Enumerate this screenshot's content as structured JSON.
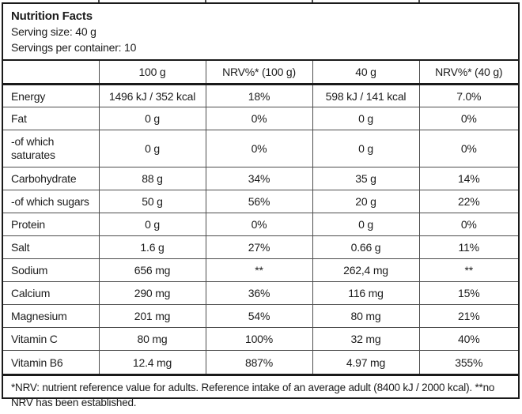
{
  "colors": {
    "background": "#ffffff",
    "text": "#1c1c1c",
    "border_thick": "#1a1a1a",
    "border_thin": "#4d4d4d"
  },
  "header": {
    "title": "Nutrition Facts",
    "serving_size": "Serving size: 40 g",
    "servings_per_container": "Servings per container: 10"
  },
  "table": {
    "columns": [
      "",
      "100 g",
      "NRV%* (100 g)",
      "40 g",
      "NRV%* (40 g)"
    ],
    "rows": [
      {
        "label": "Energy",
        "values": [
          "1496 kJ / 352 kcal",
          "18%",
          "598 kJ / 141 kcal",
          "7.0%"
        ]
      },
      {
        "label": "Fat",
        "values": [
          "0 g",
          "0%",
          "0 g",
          "0%"
        ]
      },
      {
        "label": "-of which saturates",
        "values": [
          "0 g",
          "0%",
          "0 g",
          "0%"
        ]
      },
      {
        "label": "Carbohydrate",
        "values": [
          "88 g",
          "34%",
          "35 g",
          "14%"
        ]
      },
      {
        "label": "-of which sugars",
        "values": [
          "50 g",
          "56%",
          "20 g",
          "22%"
        ]
      },
      {
        "label": "Protein",
        "values": [
          "0 g",
          "0%",
          "0 g",
          "0%"
        ]
      },
      {
        "label": "Salt",
        "values": [
          "1.6 g",
          "27%",
          "0.66 g",
          "11%"
        ]
      },
      {
        "label": "Sodium",
        "values": [
          "656 mg",
          "**",
          "262,4 mg",
          "**"
        ]
      },
      {
        "label": "Calcium",
        "values": [
          "290 mg",
          "36%",
          "116 mg",
          "15%"
        ]
      },
      {
        "label": "Magnesium",
        "values": [
          "201 mg",
          "54%",
          "80 mg",
          "21%"
        ]
      },
      {
        "label": "Vitamin C",
        "values": [
          "80 mg",
          "100%",
          "32 mg",
          "40%"
        ]
      },
      {
        "label": "Vitamin B6",
        "values": [
          "12.4 mg",
          "887%",
          "4.97 mg",
          "355%"
        ]
      }
    ]
  },
  "footnote": "*NRV: nutrient reference value for adults. Reference intake of an average adult (8400 kJ / 2000 kcal). **no NRV has been established."
}
